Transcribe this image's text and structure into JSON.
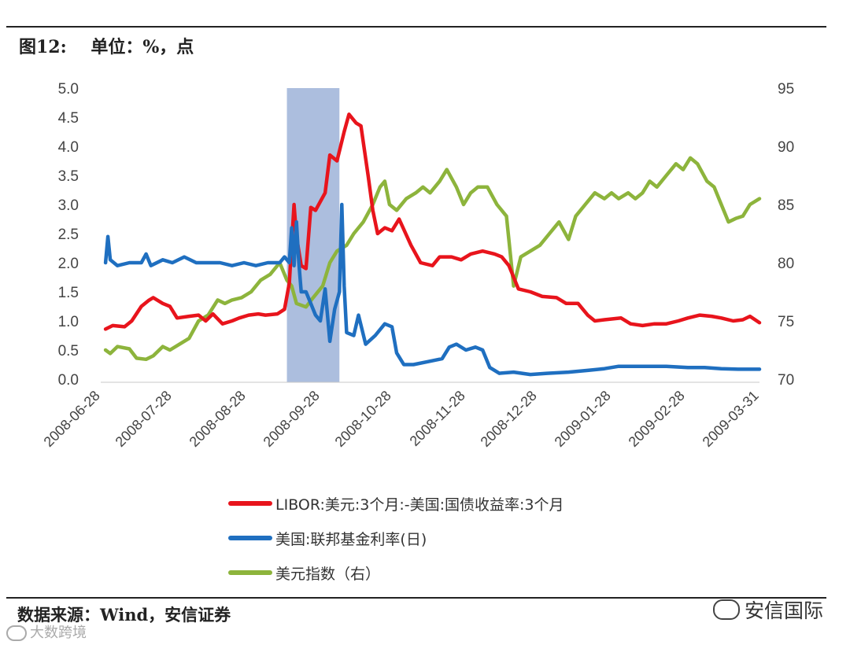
{
  "figure_title": "图12:    单位：%，点",
  "source": "数据来源：Wind，安信证券",
  "brand": "安信国际",
  "watermark": "大数跨境",
  "colors": {
    "libor_spread": "#e8141c",
    "fed_funds": "#1f6fc0",
    "dollar_index": "#8db43c",
    "highlight": "#9db3d8"
  },
  "chart_data": {
    "type": "line",
    "x_tick_labels": [
      "2008-06-28",
      "2008-07-28",
      "2008-08-28",
      "2008-09-28",
      "2008-10-28",
      "2008-11-28",
      "2008-12-28",
      "2009-01-28",
      "2009-02-28",
      "2009-03-31"
    ],
    "x_range": [
      "2008-06-28",
      "2009-03-31"
    ],
    "y_left": {
      "ylim": [
        0,
        5
      ],
      "ticks": [
        "0.0",
        "0.5",
        "1.0",
        "1.5",
        "2.0",
        "2.5",
        "3.0",
        "3.5",
        "4.0",
        "4.5",
        "5.0"
      ]
    },
    "y_right": {
      "ylim": [
        70,
        95
      ],
      "ticks": [
        "70",
        "75",
        "80",
        "85",
        "90",
        "95"
      ]
    },
    "highlight_range": [
      "2008-09-14",
      "2008-10-06"
    ],
    "grid": false,
    "legend_placement": "bottom",
    "series": [
      {
        "name": "LIBOR:美元:3个月:-美国:国债收益率:3个月",
        "axis": "left",
        "color": "#e8141c",
        "points": [
          [
            "2008-06-30",
            0.86
          ],
          [
            "2008-07-03",
            0.92
          ],
          [
            "2008-07-08",
            0.9
          ],
          [
            "2008-07-11",
            1.0
          ],
          [
            "2008-07-15",
            1.25
          ],
          [
            "2008-07-18",
            1.35
          ],
          [
            "2008-07-20",
            1.4
          ],
          [
            "2008-07-24",
            1.3
          ],
          [
            "2008-07-27",
            1.25
          ],
          [
            "2008-07-30",
            1.05
          ],
          [
            "2008-08-04",
            1.08
          ],
          [
            "2008-08-08",
            1.1
          ],
          [
            "2008-08-11",
            1.0
          ],
          [
            "2008-08-14",
            1.12
          ],
          [
            "2008-08-18",
            0.95
          ],
          [
            "2008-08-22",
            1.0
          ],
          [
            "2008-08-25",
            1.05
          ],
          [
            "2008-08-29",
            1.1
          ],
          [
            "2008-09-02",
            1.12
          ],
          [
            "2008-09-05",
            1.1
          ],
          [
            "2008-09-10",
            1.12
          ],
          [
            "2008-09-13",
            1.2
          ],
          [
            "2008-09-15",
            1.65
          ],
          [
            "2008-09-17",
            3.0
          ],
          [
            "2008-09-18",
            2.45
          ],
          [
            "2008-09-20",
            1.95
          ],
          [
            "2008-09-22",
            1.9
          ],
          [
            "2008-09-24",
            2.95
          ],
          [
            "2008-09-26",
            2.9
          ],
          [
            "2008-09-30",
            3.2
          ],
          [
            "2008-10-02",
            3.85
          ],
          [
            "2008-10-05",
            3.75
          ],
          [
            "2008-10-08",
            4.25
          ],
          [
            "2008-10-10",
            4.55
          ],
          [
            "2008-10-13",
            4.4
          ],
          [
            "2008-10-15",
            4.35
          ],
          [
            "2008-10-18",
            3.5
          ],
          [
            "2008-10-20",
            2.9
          ],
          [
            "2008-10-22",
            2.5
          ],
          [
            "2008-10-25",
            2.6
          ],
          [
            "2008-10-28",
            2.55
          ],
          [
            "2008-10-31",
            2.75
          ],
          [
            "2008-11-05",
            2.3
          ],
          [
            "2008-11-09",
            2.0
          ],
          [
            "2008-11-14",
            1.95
          ],
          [
            "2008-11-17",
            2.1
          ],
          [
            "2008-11-22",
            2.1
          ],
          [
            "2008-11-26",
            2.05
          ],
          [
            "2008-11-30",
            2.15
          ],
          [
            "2008-12-05",
            2.2
          ],
          [
            "2008-12-10",
            2.15
          ],
          [
            "2008-12-13",
            2.1
          ],
          [
            "2008-12-16",
            1.95
          ],
          [
            "2008-12-20",
            1.55
          ],
          [
            "2008-12-25",
            1.5
          ],
          [
            "2008-12-30",
            1.42
          ],
          [
            "2009-01-05",
            1.4
          ],
          [
            "2009-01-09",
            1.3
          ],
          [
            "2009-01-14",
            1.3
          ],
          [
            "2009-01-18",
            1.1
          ],
          [
            "2009-01-21",
            1.0
          ],
          [
            "2009-01-25",
            1.02
          ],
          [
            "2009-02-01",
            1.05
          ],
          [
            "2009-02-05",
            0.95
          ],
          [
            "2009-02-10",
            0.92
          ],
          [
            "2009-02-15",
            0.95
          ],
          [
            "2009-02-20",
            0.95
          ],
          [
            "2009-02-25",
            1.0
          ],
          [
            "2009-03-01",
            1.05
          ],
          [
            "2009-03-06",
            1.1
          ],
          [
            "2009-03-11",
            1.08
          ],
          [
            "2009-03-15",
            1.05
          ],
          [
            "2009-03-20",
            1.0
          ],
          [
            "2009-03-24",
            1.02
          ],
          [
            "2009-03-27",
            1.08
          ],
          [
            "2009-03-31",
            0.97
          ]
        ]
      },
      {
        "name": "美国:联邦基金利率(日)",
        "axis": "left",
        "color": "#1f6fc0",
        "points": [
          [
            "2008-06-30",
            2.0
          ],
          [
            "2008-07-01",
            2.45
          ],
          [
            "2008-07-02",
            2.05
          ],
          [
            "2008-07-05",
            1.95
          ],
          [
            "2008-07-10",
            2.0
          ],
          [
            "2008-07-15",
            2.0
          ],
          [
            "2008-07-17",
            2.15
          ],
          [
            "2008-07-19",
            1.95
          ],
          [
            "2008-07-24",
            2.05
          ],
          [
            "2008-07-28",
            2.0
          ],
          [
            "2008-08-02",
            2.1
          ],
          [
            "2008-08-07",
            2.0
          ],
          [
            "2008-08-12",
            2.0
          ],
          [
            "2008-08-17",
            2.0
          ],
          [
            "2008-08-22",
            1.95
          ],
          [
            "2008-08-27",
            2.0
          ],
          [
            "2008-09-01",
            1.95
          ],
          [
            "2008-09-06",
            2.0
          ],
          [
            "2008-09-11",
            2.0
          ],
          [
            "2008-09-13",
            2.1
          ],
          [
            "2008-09-15",
            2.0
          ],
          [
            "2008-09-16",
            2.6
          ],
          [
            "2008-09-17",
            1.95
          ],
          [
            "2008-09-18",
            2.7
          ],
          [
            "2008-09-19",
            2.0
          ],
          [
            "2008-09-20",
            1.5
          ],
          [
            "2008-09-22",
            1.5
          ],
          [
            "2008-09-24",
            1.3
          ],
          [
            "2008-09-26",
            1.1
          ],
          [
            "2008-09-28",
            1.0
          ],
          [
            "2008-09-30",
            1.55
          ],
          [
            "2008-10-02",
            0.65
          ],
          [
            "2008-10-04",
            1.2
          ],
          [
            "2008-10-06",
            1.5
          ],
          [
            "2008-10-07",
            3.0
          ],
          [
            "2008-10-08",
            1.6
          ],
          [
            "2008-10-09",
            0.8
          ],
          [
            "2008-10-12",
            0.75
          ],
          [
            "2008-10-14",
            1.1
          ],
          [
            "2008-10-17",
            0.6
          ],
          [
            "2008-10-21",
            0.75
          ],
          [
            "2008-10-25",
            0.95
          ],
          [
            "2008-10-28",
            0.9
          ],
          [
            "2008-10-30",
            0.45
          ],
          [
            "2008-11-02",
            0.25
          ],
          [
            "2008-11-06",
            0.25
          ],
          [
            "2008-11-12",
            0.3
          ],
          [
            "2008-11-18",
            0.35
          ],
          [
            "2008-11-21",
            0.55
          ],
          [
            "2008-11-24",
            0.6
          ],
          [
            "2008-11-28",
            0.5
          ],
          [
            "2008-12-02",
            0.55
          ],
          [
            "2008-12-05",
            0.5
          ],
          [
            "2008-12-08",
            0.2
          ],
          [
            "2008-12-12",
            0.1
          ],
          [
            "2008-12-18",
            0.12
          ],
          [
            "2008-12-25",
            0.08
          ],
          [
            "2009-01-01",
            0.1
          ],
          [
            "2009-01-10",
            0.12
          ],
          [
            "2009-01-18",
            0.15
          ],
          [
            "2009-01-25",
            0.18
          ],
          [
            "2009-01-31",
            0.22
          ],
          [
            "2009-02-10",
            0.22
          ],
          [
            "2009-02-20",
            0.22
          ],
          [
            "2009-03-01",
            0.2
          ],
          [
            "2009-03-08",
            0.2
          ],
          [
            "2009-03-15",
            0.18
          ],
          [
            "2009-03-22",
            0.17
          ],
          [
            "2009-03-31",
            0.17
          ]
        ]
      },
      {
        "name": "美元指数（右）",
        "axis": "right",
        "color": "#8db43c",
        "points": [
          [
            "2008-06-30",
            72.5
          ],
          [
            "2008-07-02",
            72.2
          ],
          [
            "2008-07-05",
            72.8
          ],
          [
            "2008-07-10",
            72.6
          ],
          [
            "2008-07-13",
            71.8
          ],
          [
            "2008-07-17",
            71.7
          ],
          [
            "2008-07-20",
            72.0
          ],
          [
            "2008-07-24",
            72.8
          ],
          [
            "2008-07-27",
            72.5
          ],
          [
            "2008-07-31",
            73.0
          ],
          [
            "2008-08-04",
            73.5
          ],
          [
            "2008-08-08",
            75.0
          ],
          [
            "2008-08-12",
            75.5
          ],
          [
            "2008-08-16",
            76.8
          ],
          [
            "2008-08-19",
            76.5
          ],
          [
            "2008-08-22",
            76.8
          ],
          [
            "2008-08-26",
            77.0
          ],
          [
            "2008-08-30",
            77.5
          ],
          [
            "2008-09-03",
            78.5
          ],
          [
            "2008-09-07",
            79.0
          ],
          [
            "2008-09-11",
            80.0
          ],
          [
            "2008-09-14",
            78.5
          ],
          [
            "2008-09-16",
            78.0
          ],
          [
            "2008-09-18",
            76.5
          ],
          [
            "2008-09-22",
            76.2
          ],
          [
            "2008-09-25",
            77.0
          ],
          [
            "2008-09-29",
            78.0
          ],
          [
            "2008-10-02",
            80.0
          ],
          [
            "2008-10-05",
            81.0
          ],
          [
            "2008-10-09",
            81.5
          ],
          [
            "2008-10-12",
            82.5
          ],
          [
            "2008-10-16",
            83.5
          ],
          [
            "2008-10-20",
            85.0
          ],
          [
            "2008-10-23",
            86.5
          ],
          [
            "2008-10-25",
            87.0
          ],
          [
            "2008-10-27",
            85.0
          ],
          [
            "2008-10-30",
            84.5
          ],
          [
            "2008-11-03",
            85.5
          ],
          [
            "2008-11-07",
            86.0
          ],
          [
            "2008-11-10",
            86.5
          ],
          [
            "2008-11-13",
            86.0
          ],
          [
            "2008-11-17",
            87.0
          ],
          [
            "2008-11-20",
            88.0
          ],
          [
            "2008-11-24",
            86.5
          ],
          [
            "2008-11-27",
            85.0
          ],
          [
            "2008-11-30",
            86.0
          ],
          [
            "2008-12-03",
            86.5
          ],
          [
            "2008-12-07",
            86.5
          ],
          [
            "2008-12-11",
            85.0
          ],
          [
            "2008-12-15",
            84.0
          ],
          [
            "2008-12-18",
            78.0
          ],
          [
            "2008-12-21",
            80.5
          ],
          [
            "2008-12-25",
            81.0
          ],
          [
            "2008-12-29",
            81.5
          ],
          [
            "2009-01-02",
            82.5
          ],
          [
            "2009-01-06",
            83.5
          ],
          [
            "2009-01-10",
            82.0
          ],
          [
            "2009-01-13",
            84.0
          ],
          [
            "2009-01-17",
            85.0
          ],
          [
            "2009-01-21",
            86.0
          ],
          [
            "2009-01-25",
            85.5
          ],
          [
            "2009-01-28",
            86.0
          ],
          [
            "2009-01-31",
            85.5
          ],
          [
            "2009-02-04",
            86.0
          ],
          [
            "2009-02-07",
            85.5
          ],
          [
            "2009-02-10",
            86.0
          ],
          [
            "2009-02-13",
            87.0
          ],
          [
            "2009-02-16",
            86.5
          ],
          [
            "2009-02-20",
            87.5
          ],
          [
            "2009-02-24",
            88.5
          ],
          [
            "2009-02-27",
            88.0
          ],
          [
            "2009-03-02",
            89.0
          ],
          [
            "2009-03-05",
            88.5
          ],
          [
            "2009-03-09",
            87.0
          ],
          [
            "2009-03-12",
            86.5
          ],
          [
            "2009-03-16",
            84.5
          ],
          [
            "2009-03-18",
            83.5
          ],
          [
            "2009-03-21",
            83.8
          ],
          [
            "2009-03-24",
            84.0
          ],
          [
            "2009-03-27",
            85.0
          ],
          [
            "2009-03-31",
            85.5
          ]
        ]
      }
    ]
  }
}
